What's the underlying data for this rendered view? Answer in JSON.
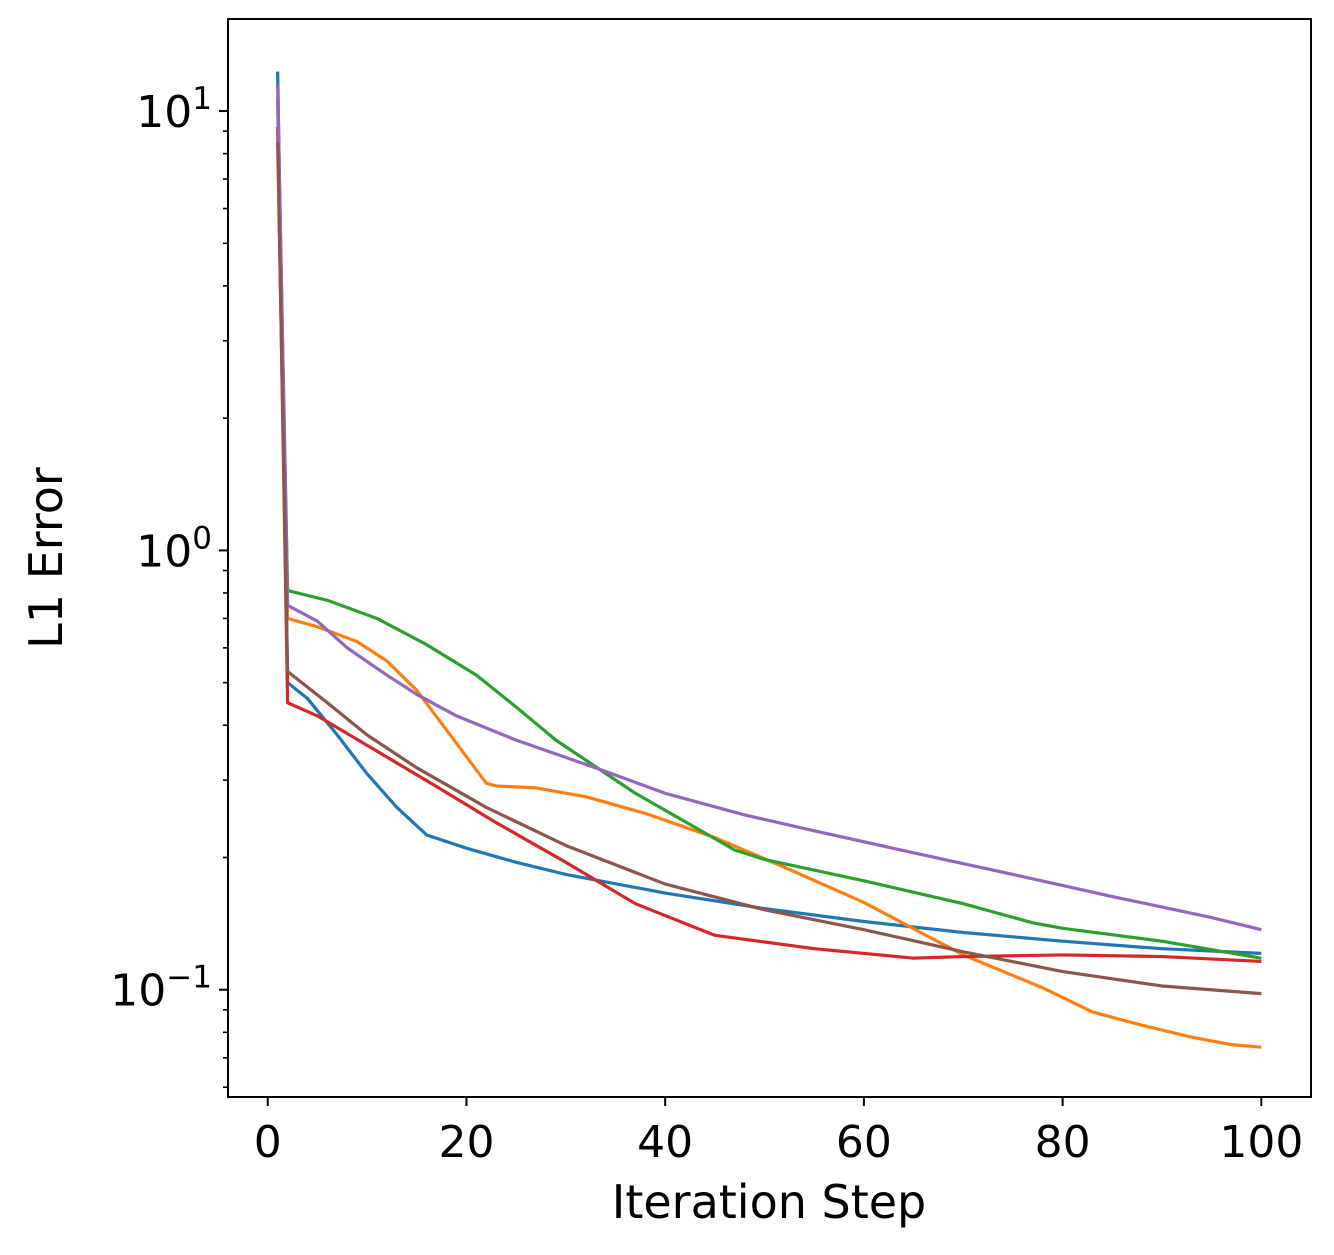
{
  "chart_data": {
    "type": "line",
    "title": "",
    "xlabel": "Iteration Step",
    "ylabel": "L1 Error",
    "xscale": "linear",
    "yscale": "log",
    "xlim": [
      -4,
      105
    ],
    "ylim": [
      0.057,
      16.2
    ],
    "legend": "none",
    "grid": false,
    "xticks": [
      {
        "value": 0,
        "label": "0"
      },
      {
        "value": 20,
        "label": "20"
      },
      {
        "value": 40,
        "label": "40"
      },
      {
        "value": 60,
        "label": "60"
      },
      {
        "value": 80,
        "label": "80"
      },
      {
        "value": 100,
        "label": "100"
      }
    ],
    "yticks_major": [
      {
        "value": 10,
        "base": "10",
        "exp": "1"
      },
      {
        "value": 1,
        "base": "10",
        "exp": "0"
      },
      {
        "value": 0.1,
        "base": "10",
        "exp": "−1"
      }
    ],
    "yticks_minor": [
      0.06,
      0.07,
      0.08,
      0.09,
      0.2,
      0.3,
      0.4,
      0.5,
      0.6,
      0.7,
      0.8,
      0.9,
      2,
      3,
      4,
      5,
      6,
      7,
      8,
      9
    ],
    "series": [
      {
        "name": "series-blue",
        "color": "#1f77b4",
        "points": [
          [
            1,
            12.3
          ],
          [
            2,
            0.5
          ],
          [
            4,
            0.46
          ],
          [
            7,
            0.38
          ],
          [
            10,
            0.31
          ],
          [
            13,
            0.26
          ],
          [
            16,
            0.225
          ],
          [
            20,
            0.21
          ],
          [
            25,
            0.195
          ],
          [
            30,
            0.183
          ],
          [
            40,
            0.166
          ],
          [
            50,
            0.153
          ],
          [
            60,
            0.143
          ],
          [
            70,
            0.135
          ],
          [
            80,
            0.129
          ],
          [
            90,
            0.124
          ],
          [
            100,
            0.121
          ]
        ]
      },
      {
        "name": "series-orange",
        "color": "#ff7f0e",
        "points": [
          [
            1,
            10.8
          ],
          [
            2,
            0.7
          ],
          [
            5,
            0.67
          ],
          [
            9,
            0.62
          ],
          [
            12,
            0.56
          ],
          [
            15,
            0.48
          ],
          [
            18,
            0.39
          ],
          [
            22,
            0.295
          ],
          [
            23,
            0.291
          ],
          [
            27,
            0.288
          ],
          [
            32,
            0.275
          ],
          [
            38,
            0.252
          ],
          [
            45,
            0.222
          ],
          [
            52,
            0.19
          ],
          [
            60,
            0.158
          ],
          [
            70,
            0.12
          ],
          [
            78,
            0.101
          ],
          [
            83,
            0.089
          ],
          [
            88,
            0.083
          ],
          [
            93,
            0.078
          ],
          [
            97,
            0.075
          ],
          [
            100,
            0.074
          ]
        ]
      },
      {
        "name": "series-green",
        "color": "#2ca02c",
        "points": [
          [
            1,
            10.5
          ],
          [
            2,
            0.81
          ],
          [
            6,
            0.77
          ],
          [
            11,
            0.7
          ],
          [
            16,
            0.61
          ],
          [
            21,
            0.52
          ],
          [
            25,
            0.44
          ],
          [
            29,
            0.37
          ],
          [
            37,
            0.28
          ],
          [
            47,
            0.208
          ],
          [
            50,
            0.198
          ],
          [
            60,
            0.177
          ],
          [
            70,
            0.157
          ],
          [
            77,
            0.142
          ],
          [
            80,
            0.138
          ],
          [
            90,
            0.129
          ],
          [
            100,
            0.118
          ]
        ]
      },
      {
        "name": "series-red",
        "color": "#d62728",
        "points": [
          [
            1,
            9.2
          ],
          [
            2,
            0.45
          ],
          [
            5,
            0.42
          ],
          [
            10,
            0.36
          ],
          [
            17,
            0.29
          ],
          [
            23,
            0.24
          ],
          [
            30,
            0.195
          ],
          [
            37,
            0.157
          ],
          [
            45,
            0.133
          ],
          [
            55,
            0.124
          ],
          [
            65,
            0.118
          ],
          [
            70,
            0.119
          ],
          [
            80,
            0.12
          ],
          [
            90,
            0.119
          ],
          [
            100,
            0.116
          ]
        ]
      },
      {
        "name": "series-purple",
        "color": "#9467bd",
        "points": [
          [
            1,
            11.5
          ],
          [
            2,
            0.75
          ],
          [
            5,
            0.69
          ],
          [
            8,
            0.6
          ],
          [
            12,
            0.52
          ],
          [
            15,
            0.47
          ],
          [
            19,
            0.42
          ],
          [
            25,
            0.37
          ],
          [
            33,
            0.32
          ],
          [
            40,
            0.28
          ],
          [
            48,
            0.25
          ],
          [
            55,
            0.23
          ],
          [
            65,
            0.205
          ],
          [
            75,
            0.183
          ],
          [
            85,
            0.163
          ],
          [
            95,
            0.146
          ],
          [
            100,
            0.137
          ]
        ]
      },
      {
        "name": "series-brown",
        "color": "#8c564b",
        "points": [
          [
            1,
            8.5
          ],
          [
            2,
            0.53
          ],
          [
            6,
            0.45
          ],
          [
            10,
            0.38
          ],
          [
            15,
            0.32
          ],
          [
            22,
            0.26
          ],
          [
            30,
            0.213
          ],
          [
            40,
            0.174
          ],
          [
            50,
            0.152
          ],
          [
            60,
            0.137
          ],
          [
            70,
            0.122
          ],
          [
            80,
            0.11
          ],
          [
            90,
            0.102
          ],
          [
            100,
            0.098
          ]
        ]
      }
    ]
  }
}
